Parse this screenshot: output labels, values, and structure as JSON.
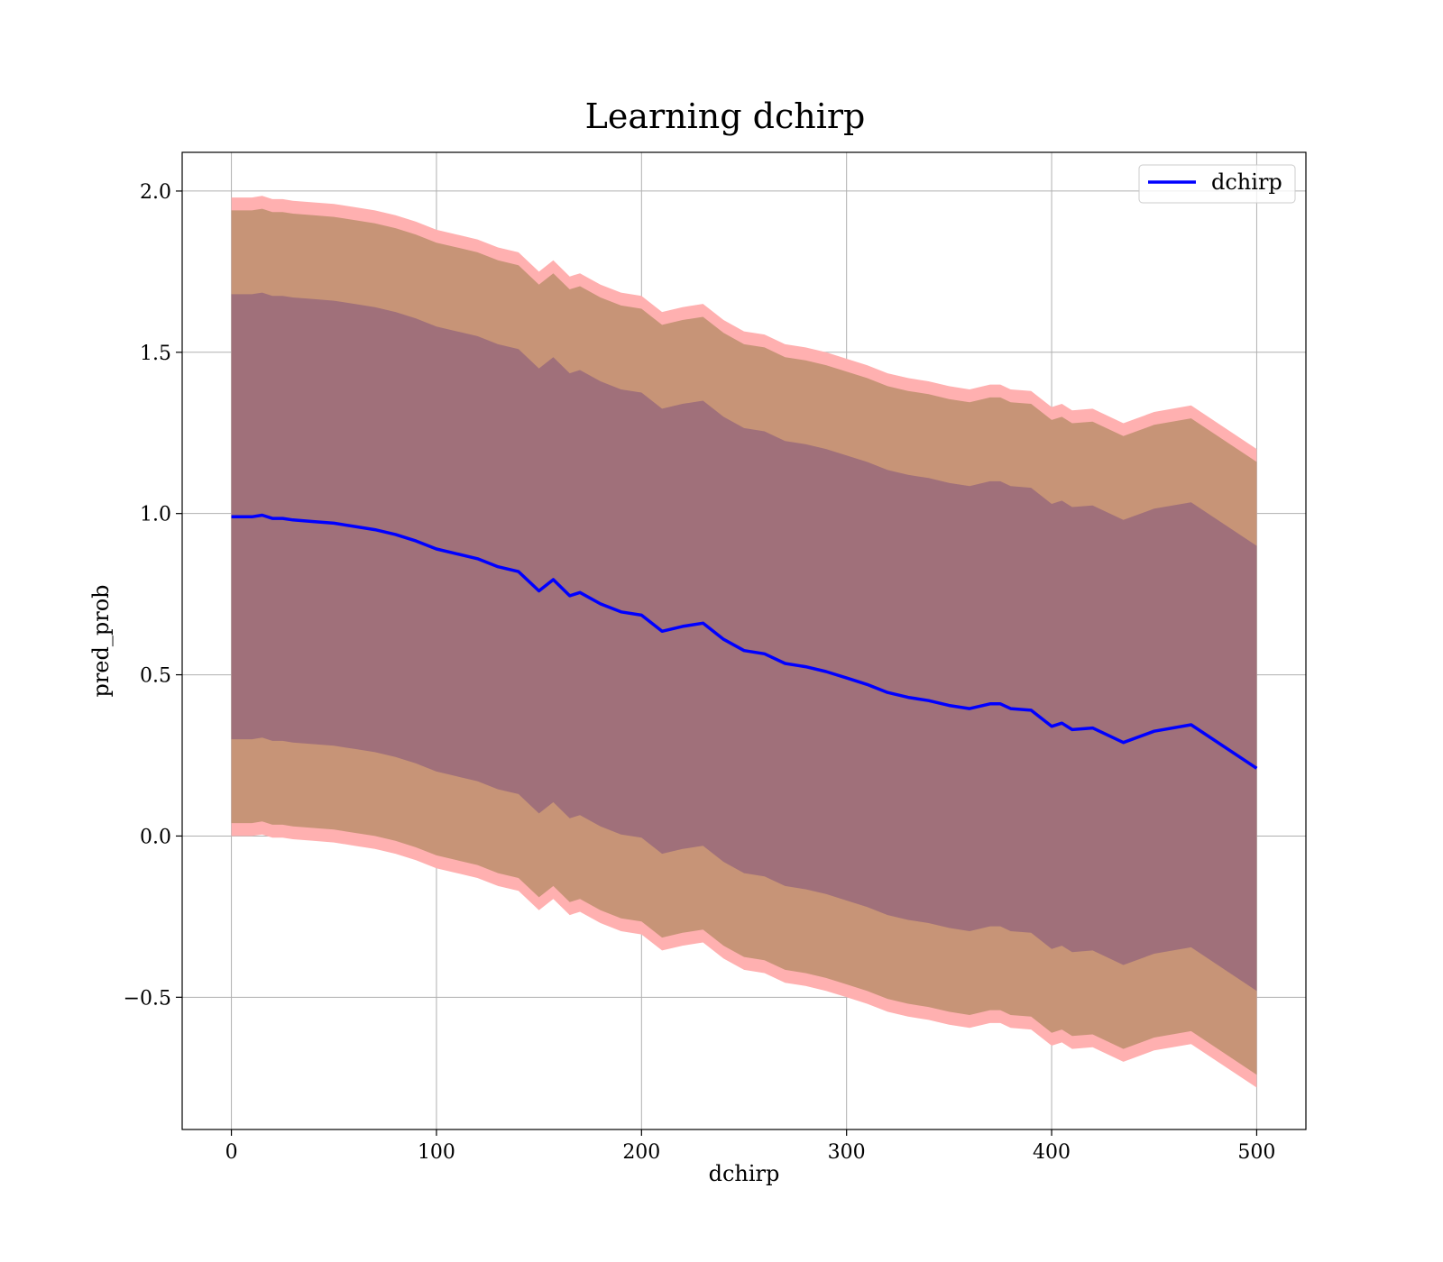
{
  "chart_data": {
    "type": "line",
    "title": "Learning dchirp",
    "xlabel": "dchirp",
    "ylabel": "pred_prob",
    "xlim": [
      -24,
      524
    ],
    "ylim": [
      -0.91,
      2.12
    ],
    "xticks": [
      0,
      100,
      200,
      300,
      400,
      500
    ],
    "yticks": [
      -0.5,
      0.0,
      0.5,
      1.0,
      1.5,
      2.0
    ],
    "xtick_labels": [
      "0",
      "100",
      "200",
      "300",
      "400",
      "500"
    ],
    "ytick_labels": [
      "−0.5",
      "0.0",
      "0.5",
      "1.0",
      "1.5",
      "2.0"
    ],
    "grid": true,
    "legend_position": "top-right",
    "series": [
      {
        "name": "dchirp",
        "color": "#0000ff",
        "x": [
          0,
          10,
          15,
          20,
          25,
          30,
          40,
          50,
          60,
          70,
          80,
          90,
          100,
          110,
          120,
          130,
          140,
          150,
          157,
          165,
          170,
          180,
          190,
          200,
          210,
          220,
          230,
          240,
          250,
          260,
          270,
          280,
          290,
          300,
          310,
          320,
          330,
          340,
          350,
          360,
          370,
          375,
          380,
          390,
          400,
          405,
          410,
          420,
          435,
          450,
          468,
          500
        ],
        "y": [
          0.99,
          0.99,
          0.995,
          0.985,
          0.985,
          0.98,
          0.975,
          0.97,
          0.96,
          0.95,
          0.935,
          0.915,
          0.89,
          0.875,
          0.86,
          0.835,
          0.82,
          0.76,
          0.795,
          0.745,
          0.755,
          0.72,
          0.695,
          0.685,
          0.635,
          0.65,
          0.66,
          0.61,
          0.575,
          0.565,
          0.535,
          0.525,
          0.51,
          0.49,
          0.47,
          0.445,
          0.43,
          0.42,
          0.405,
          0.395,
          0.41,
          0.41,
          0.395,
          0.39,
          0.34,
          0.35,
          0.33,
          0.335,
          0.29,
          0.325,
          0.345,
          0.21
        ]
      }
    ],
    "bands": [
      {
        "sigma": 3,
        "color": "#ffb0b0",
        "lower_offset": -0.99,
        "upper_offset": 0.99
      },
      {
        "sigma": 2,
        "color": "#c79477",
        "lower_offset": -0.95,
        "upper_offset": 0.95
      },
      {
        "sigma": 1,
        "color": "#a0707a",
        "lower_offset": -0.69,
        "upper_offset": 0.69
      }
    ]
  }
}
